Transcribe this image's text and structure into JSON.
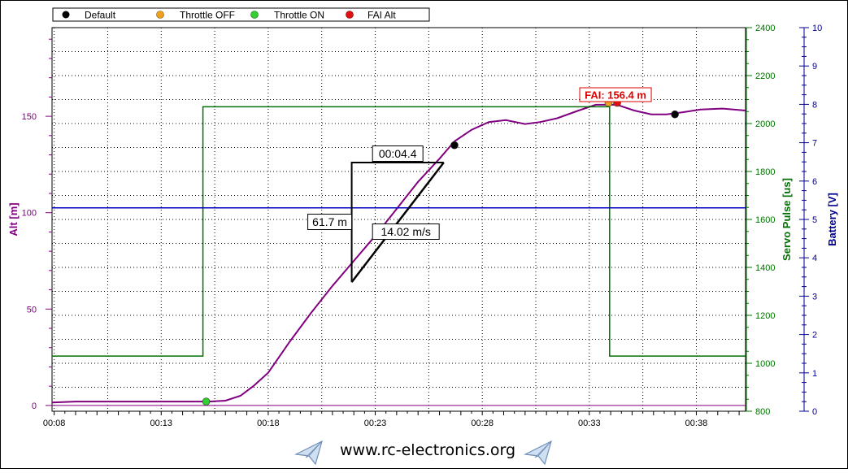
{
  "legend": {
    "items": [
      {
        "label": "Default",
        "color": "#000000"
      },
      {
        "label": "Throttle OFF",
        "color": "#f0a020"
      },
      {
        "label": "Throttle ON",
        "color": "#30d030"
      },
      {
        "label": "FAI Alt",
        "color": "#e01010"
      }
    ]
  },
  "footer": {
    "url": "www.rc-electronics.org"
  },
  "chart_data": {
    "type": "line",
    "x_ticks": [
      "00:08",
      "00:13",
      "00:18",
      "00:23",
      "00:28",
      "00:33",
      "00:38"
    ],
    "x_tick_values": [
      8,
      13,
      18,
      23,
      28,
      33,
      38
    ],
    "xlim": [
      7.9,
      40.3
    ],
    "axes": {
      "alt": {
        "label": "Alt [m]",
        "color": "#800080",
        "ylim": [
          -3,
          196
        ],
        "ticks": [
          0,
          50,
          100,
          150
        ]
      },
      "servo": {
        "label": "Servo Pulse [us]",
        "color": "#007000",
        "ylim": [
          800,
          2400
        ],
        "ticks": [
          800,
          1000,
          1200,
          1400,
          1600,
          1800,
          2000,
          2200,
          2400
        ]
      },
      "battery": {
        "label": "Battery [V]",
        "color": "#000090",
        "ylim": [
          0,
          10
        ],
        "ticks": [
          0,
          1,
          2,
          3,
          4,
          5,
          6,
          7,
          8,
          9,
          10
        ]
      }
    },
    "series": [
      {
        "axis": "alt",
        "color": "#800080",
        "x": [
          7.9,
          9,
          10,
          12,
          14,
          15.2,
          16,
          16.7,
          17.3,
          18,
          18.5,
          19,
          20,
          21,
          22,
          23,
          24,
          25,
          26,
          26.7,
          27.5,
          28.3,
          29.1,
          30,
          30.7,
          31.5,
          32.5,
          33.3,
          33.9,
          34.3,
          35.1,
          35.9,
          36.6,
          37.3,
          38.2,
          39.2,
          40.3
        ],
        "y": [
          1.5,
          2,
          2,
          2,
          2,
          2,
          2.5,
          5,
          10,
          17,
          25,
          33,
          48,
          62,
          75,
          88,
          102,
          116,
          128,
          137,
          143,
          147,
          148,
          146,
          147,
          149,
          153,
          156,
          156,
          156,
          153,
          151,
          151,
          152,
          153.5,
          154,
          153
        ]
      },
      {
        "axis": "servo",
        "color": "#007000",
        "x": [
          7.9,
          14.95,
          14.95,
          33.95,
          33.95,
          40.3
        ],
        "y": [
          1030,
          1030,
          2070,
          2070,
          1030,
          1030
        ]
      },
      {
        "axis": "battery",
        "color": "#0000c0",
        "x": [
          7.9,
          40.3
        ],
        "y": [
          5.3,
          5.3
        ]
      }
    ],
    "markers": [
      {
        "type": "Throttle ON",
        "x": 15.1,
        "y": 2,
        "color": "#30d030"
      },
      {
        "type": "Default",
        "x": 26.7,
        "y": 135,
        "color": "#000000"
      },
      {
        "type": "Throttle OFF",
        "x": 33.9,
        "y": 157,
        "color": "#f0a020"
      },
      {
        "type": "FAI Alt",
        "x": 34.3,
        "y": 157,
        "color": "#e01010"
      },
      {
        "type": "Default",
        "x": 37.0,
        "y": 151,
        "color": "#000000"
      }
    ],
    "annotations": {
      "fai_label": "FAI: 156.4 m",
      "time_delta": "00:04.4",
      "alt_delta": "61.7 m",
      "climb_rate": "14.02 m/s",
      "segment": {
        "x0": 21.9,
        "y0": 64,
        "x1": 26.2,
        "y1": 126
      }
    }
  }
}
